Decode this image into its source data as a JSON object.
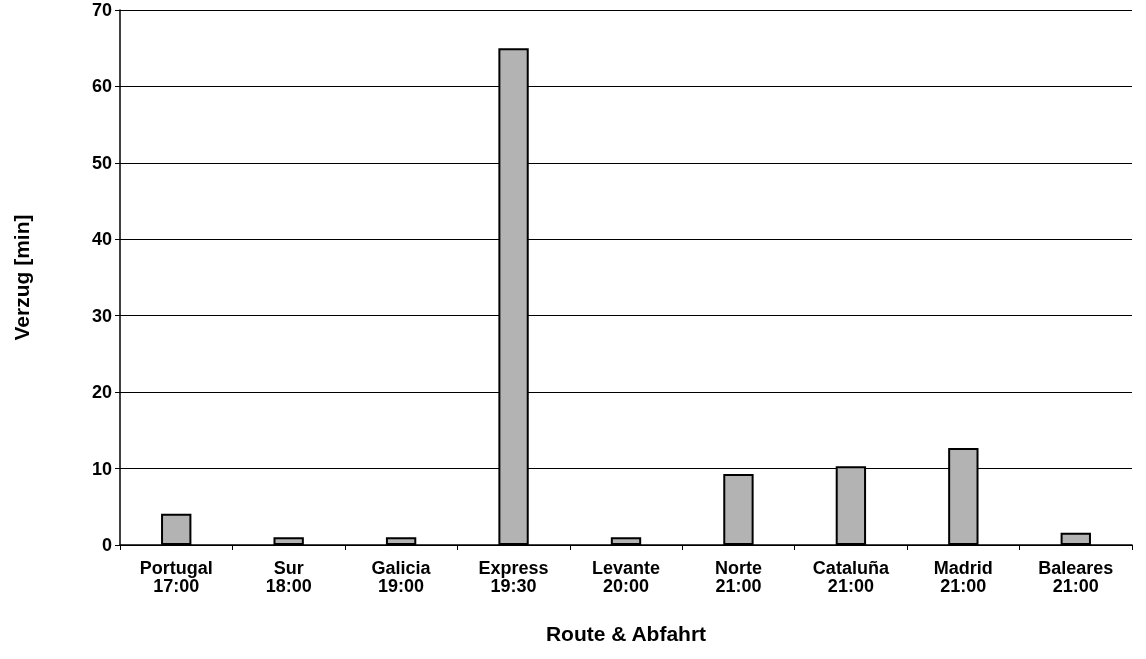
{
  "chart_data": {
    "type": "bar",
    "xlabel": "Route & Abfahrt",
    "ylabel": "Verzug [min]",
    "categories": [
      "Portugal\n17:00",
      "Sur\n18:00",
      "Galicia\n19:00",
      "Express\n19:30",
      "Levante\n20:00",
      "Norte\n21:00",
      "Cataluña\n21:00",
      "Madrid\n21:00",
      "Baleares\n21:00"
    ],
    "values": [
      4.1,
      1,
      1,
      65,
      1,
      9.3,
      10.3,
      12.7,
      1.6
    ],
    "color": "#b3b3b3",
    "ylim": [
      0,
      70
    ],
    "yticks": [
      0,
      10,
      20,
      30,
      40,
      50,
      60,
      70
    ],
    "grid": "y"
  }
}
